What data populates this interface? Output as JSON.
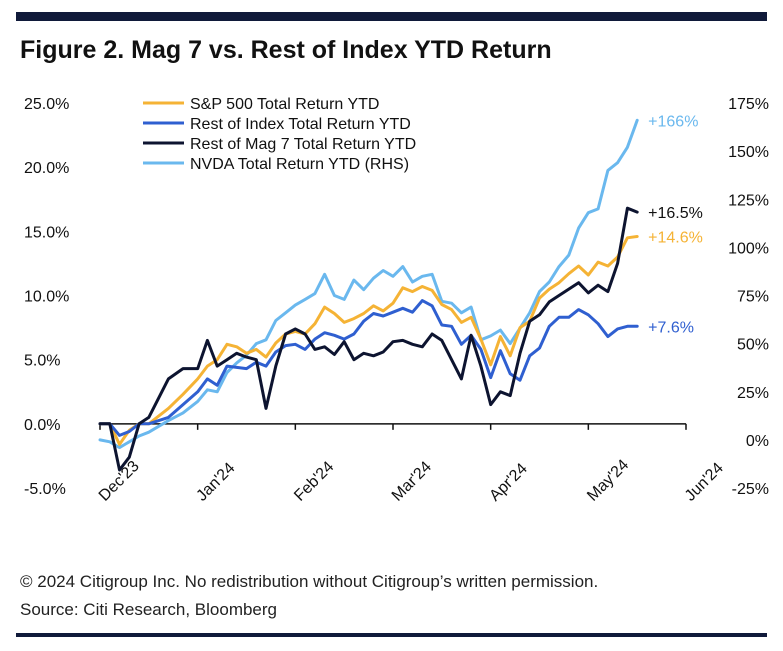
{
  "title": "Figure 2. Mag 7 vs. Rest of Index YTD Return",
  "copyright": "© 2024 Citigroup Inc. No redistribution without Citigroup’s written permission.",
  "source": "Source: Citi Research, Bloomberg",
  "chart_data": {
    "type": "line",
    "title": "Figure 2. Mag 7 vs. Rest of Index YTD Return",
    "x_tick_labels": [
      "Dec'23",
      "Jan'24",
      "Feb'24",
      "Mar'24",
      "Apr'24",
      "May'24",
      "Jun'24"
    ],
    "x_tick_positions": [
      0,
      1,
      2,
      3,
      4,
      5,
      6
    ],
    "y_left": {
      "range": [
        -5,
        25
      ],
      "ticks": [
        -5,
        0,
        5,
        10,
        15,
        20,
        25
      ],
      "tick_labels": [
        "-5.0%",
        "0.0%",
        "5.0%",
        "10.0%",
        "15.0%",
        "20.0%",
        "25.0%"
      ]
    },
    "y_right": {
      "range": [
        -25,
        175
      ],
      "ticks": [
        -25,
        0,
        25,
        50,
        75,
        100,
        125,
        150,
        175
      ],
      "tick_labels": [
        "-25%",
        "0%",
        "25%",
        "50%",
        "75%",
        "100%",
        "125%",
        "150%",
        "175%"
      ]
    },
    "legend_position": "top-left",
    "series": [
      {
        "name": "S&P 500 Total Return YTD",
        "color": "#f5b335",
        "axis": "left",
        "end_label": "+14.6%",
        "x": [
          0,
          0.1,
          0.2,
          0.3,
          0.4,
          0.5,
          0.7,
          0.85,
          1.0,
          1.1,
          1.2,
          1.3,
          1.4,
          1.5,
          1.6,
          1.7,
          1.8,
          1.9,
          2.0,
          2.1,
          2.2,
          2.3,
          2.4,
          2.5,
          2.6,
          2.7,
          2.8,
          2.9,
          3.0,
          3.1,
          3.2,
          3.3,
          3.4,
          3.5,
          3.6,
          3.7,
          3.8,
          3.9,
          4.0,
          4.1,
          4.2,
          4.3,
          4.4,
          4.5,
          4.6,
          4.7,
          4.8,
          4.9,
          5.0,
          5.1,
          5.2,
          5.3,
          5.4,
          5.5
        ],
        "y": [
          0,
          0,
          -1.6,
          -0.5,
          0,
          0,
          1.2,
          2.3,
          3.5,
          4.5,
          5.0,
          6.2,
          6.0,
          5.5,
          5.8,
          5.2,
          6.3,
          7.0,
          7.2,
          7.0,
          7.8,
          9.1,
          8.6,
          7.9,
          8.2,
          8.6,
          9.2,
          8.8,
          9.4,
          10.6,
          10.3,
          10.7,
          10.4,
          9.3,
          8.9,
          7.9,
          8.3,
          6.6,
          4.6,
          6.8,
          5.3,
          7.5,
          8.0,
          9.8,
          10.5,
          11.0,
          11.7,
          12.3,
          11.6,
          12.6,
          12.3,
          13.0,
          14.5,
          14.6
        ]
      },
      {
        "name": "Rest of Index Total Return YTD",
        "color": "#2f5fd0",
        "axis": "left",
        "end_label": "+7.6%",
        "x": [
          0,
          0.1,
          0.2,
          0.3,
          0.4,
          0.5,
          0.7,
          0.85,
          1.0,
          1.1,
          1.2,
          1.3,
          1.4,
          1.5,
          1.6,
          1.7,
          1.8,
          1.9,
          2.0,
          2.1,
          2.2,
          2.3,
          2.4,
          2.5,
          2.6,
          2.7,
          2.8,
          2.9,
          3.0,
          3.1,
          3.2,
          3.3,
          3.4,
          3.5,
          3.6,
          3.7,
          3.8,
          3.9,
          4.0,
          4.1,
          4.2,
          4.3,
          4.4,
          4.5,
          4.6,
          4.7,
          4.8,
          4.9,
          5.0,
          5.1,
          5.2,
          5.3,
          5.4,
          5.5
        ],
        "y": [
          0,
          0,
          -0.9,
          -0.6,
          0,
          0,
          0.5,
          1.5,
          2.5,
          3.5,
          3.0,
          4.5,
          4.4,
          4.3,
          4.8,
          4.5,
          5.6,
          6.1,
          6.2,
          5.8,
          6.6,
          7.1,
          6.9,
          6.6,
          7.0,
          8.0,
          8.6,
          8.4,
          8.7,
          9.0,
          8.7,
          9.6,
          9.2,
          7.7,
          7.6,
          6.2,
          6.9,
          5.8,
          3.6,
          5.7,
          3.9,
          3.4,
          5.3,
          5.9,
          7.6,
          8.3,
          8.3,
          8.9,
          8.5,
          7.8,
          6.8,
          7.4,
          7.6,
          7.6
        ]
      },
      {
        "name": "Rest of Mag 7 Total Return YTD",
        "color": "#0d1430",
        "axis": "left",
        "end_label": "+16.5%",
        "x": [
          0,
          0.1,
          0.2,
          0.3,
          0.4,
          0.5,
          0.7,
          0.85,
          1.0,
          1.1,
          1.2,
          1.3,
          1.4,
          1.5,
          1.6,
          1.7,
          1.8,
          1.9,
          2.0,
          2.1,
          2.2,
          2.3,
          2.4,
          2.5,
          2.6,
          2.7,
          2.8,
          2.9,
          3.0,
          3.1,
          3.2,
          3.3,
          3.4,
          3.5,
          3.6,
          3.7,
          3.8,
          3.9,
          4.0,
          4.1,
          4.2,
          4.3,
          4.4,
          4.5,
          4.6,
          4.7,
          4.8,
          4.9,
          5.0,
          5.1,
          5.2,
          5.3,
          5.4,
          5.5
        ],
        "y": [
          0,
          0,
          -3.6,
          -2.6,
          0,
          0.5,
          3.5,
          4.3,
          4.3,
          6.5,
          4.5,
          5.0,
          5.5,
          5.2,
          5.0,
          1.2,
          4.5,
          7.0,
          7.4,
          7.0,
          5.8,
          6.0,
          5.4,
          6.4,
          5.0,
          5.5,
          5.3,
          5.6,
          6.4,
          6.5,
          6.2,
          6.0,
          7.0,
          6.5,
          5.0,
          3.5,
          6.9,
          4.5,
          1.5,
          2.5,
          2.2,
          5.5,
          8.0,
          8.5,
          9.5,
          10.0,
          10.5,
          11.0,
          10.2,
          10.8,
          10.3,
          12.5,
          16.8,
          16.5
        ]
      },
      {
        "name": "NVDA Total Return YTD (RHS)",
        "color": "#6ab8ee",
        "axis": "right",
        "end_label": "+166%",
        "x": [
          0,
          0.1,
          0.2,
          0.3,
          0.4,
          0.5,
          0.7,
          0.85,
          1.0,
          1.1,
          1.2,
          1.3,
          1.4,
          1.5,
          1.6,
          1.7,
          1.8,
          1.9,
          2.0,
          2.1,
          2.2,
          2.3,
          2.4,
          2.5,
          2.6,
          2.7,
          2.8,
          2.9,
          3.0,
          3.1,
          3.2,
          3.3,
          3.4,
          3.5,
          3.6,
          3.7,
          3.8,
          3.9,
          4.0,
          4.1,
          4.2,
          4.3,
          4.4,
          4.5,
          4.6,
          4.7,
          4.8,
          4.9,
          5.0,
          5.1,
          5.2,
          5.3,
          5.4,
          5.5
        ],
        "y": [
          0,
          -1,
          -4,
          -1,
          2,
          4,
          10,
          14,
          20,
          26,
          25,
          35,
          40,
          44,
          50,
          52,
          62,
          66,
          70,
          73,
          76,
          86,
          75,
          73,
          83,
          78,
          84,
          88,
          85,
          90,
          82,
          85,
          86,
          72,
          71,
          66,
          69,
          52,
          54,
          57,
          50,
          58,
          66,
          77,
          82,
          90,
          96,
          110,
          118,
          120,
          140,
          144,
          152,
          166
        ]
      }
    ]
  }
}
